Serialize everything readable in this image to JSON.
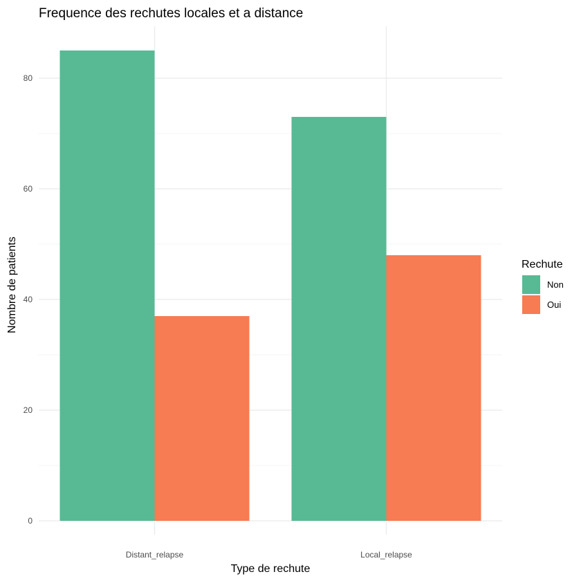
{
  "chart_data": {
    "type": "bar",
    "title": "Frequence des rechutes locales et a distance",
    "xlabel": "Type de rechute",
    "ylabel": "Nombre de patients",
    "categories": [
      "Distant_relapse",
      "Local_relapse"
    ],
    "series": [
      {
        "name": "Non",
        "values": [
          85,
          73
        ],
        "color": "#57BA94"
      },
      {
        "name": "Oui",
        "values": [
          37,
          48
        ],
        "color": "#F77B53"
      }
    ],
    "ylim": [
      0,
      88
    ],
    "yticks": [
      0,
      20,
      40,
      60,
      80
    ],
    "grid": true,
    "legend": {
      "title": "Rechute",
      "position": "right"
    }
  }
}
